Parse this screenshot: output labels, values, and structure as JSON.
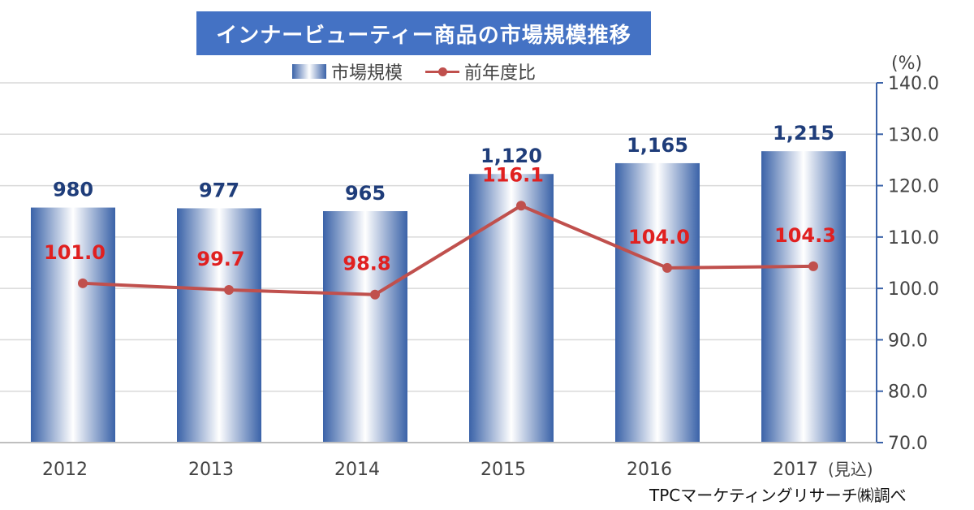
{
  "title": "インナービューティー商品の市場規模推移",
  "legend": {
    "bar_label": "市場規模",
    "line_label": "前年度比"
  },
  "unit_label": "(%)",
  "estimate_note": "(見込)",
  "source": "TPCマーケティングリサーチ㈱調べ",
  "colors": {
    "bar": "#3a62a8",
    "line": "#c0504d",
    "bar_label": "#1f3d7a",
    "line_label": "#e02020",
    "title_bg": "#4472c4"
  },
  "chart_data": {
    "type": "bar",
    "categories": [
      "2012",
      "2013",
      "2014",
      "2015",
      "2016",
      "2017"
    ],
    "series": [
      {
        "name": "市場規模",
        "type": "bar",
        "values": [
          980,
          977,
          965,
          1120,
          1165,
          1215
        ],
        "labels": [
          "980",
          "977",
          "965",
          "1,120",
          "1,165",
          "1,215"
        ]
      },
      {
        "name": "前年度比",
        "type": "line",
        "axis": "right",
        "values": [
          101.0,
          99.7,
          98.8,
          116.1,
          104.0,
          104.3
        ],
        "labels": [
          "101.0",
          "99.7",
          "98.8",
          "116.1",
          "104.0",
          "104.3"
        ]
      }
    ],
    "y2lim": [
      70.0,
      140.0
    ],
    "y2ticks": [
      "70.0",
      "80.0",
      "90.0",
      "100.0",
      "110.0",
      "120.0",
      "130.0",
      "140.0"
    ],
    "grid": true,
    "legend_position": "top-center"
  }
}
